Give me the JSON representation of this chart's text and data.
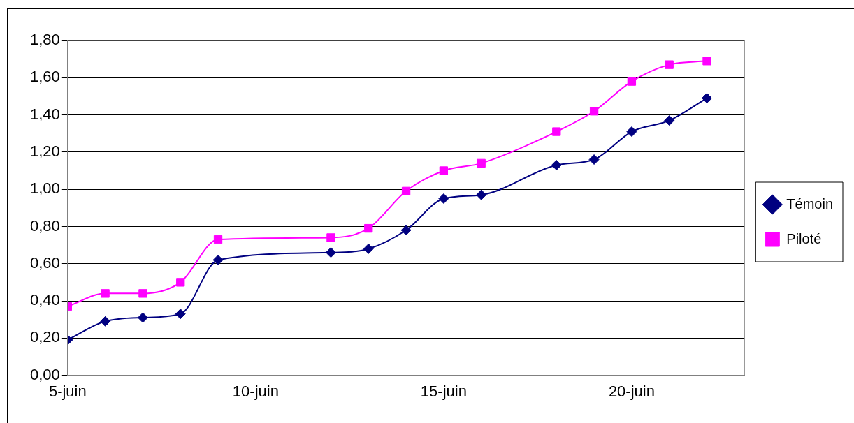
{
  "chart_data": {
    "type": "line",
    "x": [
      "--06-05",
      "--06-06",
      "--06-07",
      "--06-08",
      "--06-09",
      "--06-12",
      "--06-13",
      "--06-14",
      "--06-15",
      "--06-16",
      "--06-18",
      "--06-19",
      "--06-20",
      "--06-21",
      "--06-22"
    ],
    "series": [
      {
        "name": "Témoin",
        "color": "#000080",
        "marker": "diamond",
        "values": [
          0.19,
          0.29,
          0.31,
          0.33,
          0.62,
          0.66,
          0.68,
          0.78,
          0.95,
          0.97,
          1.13,
          1.16,
          1.31,
          1.37,
          1.49
        ]
      },
      {
        "name": "Piloté",
        "color": "#ff00ff",
        "marker": "square",
        "values": [
          0.37,
          0.44,
          0.44,
          0.5,
          0.73,
          0.74,
          0.79,
          0.99,
          1.1,
          1.14,
          1.31,
          1.42,
          1.58,
          1.67,
          1.69
        ]
      }
    ],
    "xlim": [
      "--06-05",
      "--06-23"
    ],
    "xticks": [
      {
        "value": "--06-05",
        "label": "5-juin"
      },
      {
        "value": "--06-10",
        "label": "10-juin"
      },
      {
        "value": "--06-15",
        "label": "15-juin"
      },
      {
        "value": "--06-20",
        "label": "20-juin"
      }
    ],
    "ylim": [
      0,
      1.8
    ],
    "yticks": [
      {
        "value": 0,
        "label": "0,00"
      },
      {
        "value": 0.2,
        "label": "0,20"
      },
      {
        "value": 0.4,
        "label": "0,40"
      },
      {
        "value": 0.6,
        "label": "0,60"
      },
      {
        "value": 0.8,
        "label": "0,80"
      },
      {
        "value": 1.0,
        "label": "1,00"
      },
      {
        "value": 1.2,
        "label": "1,20"
      },
      {
        "value": 1.4,
        "label": "1,40"
      },
      {
        "value": 1.6,
        "label": "1,60"
      },
      {
        "value": 1.8,
        "label": "1,80"
      }
    ],
    "grid": "y",
    "legend": "right",
    "line_style": "solid"
  }
}
